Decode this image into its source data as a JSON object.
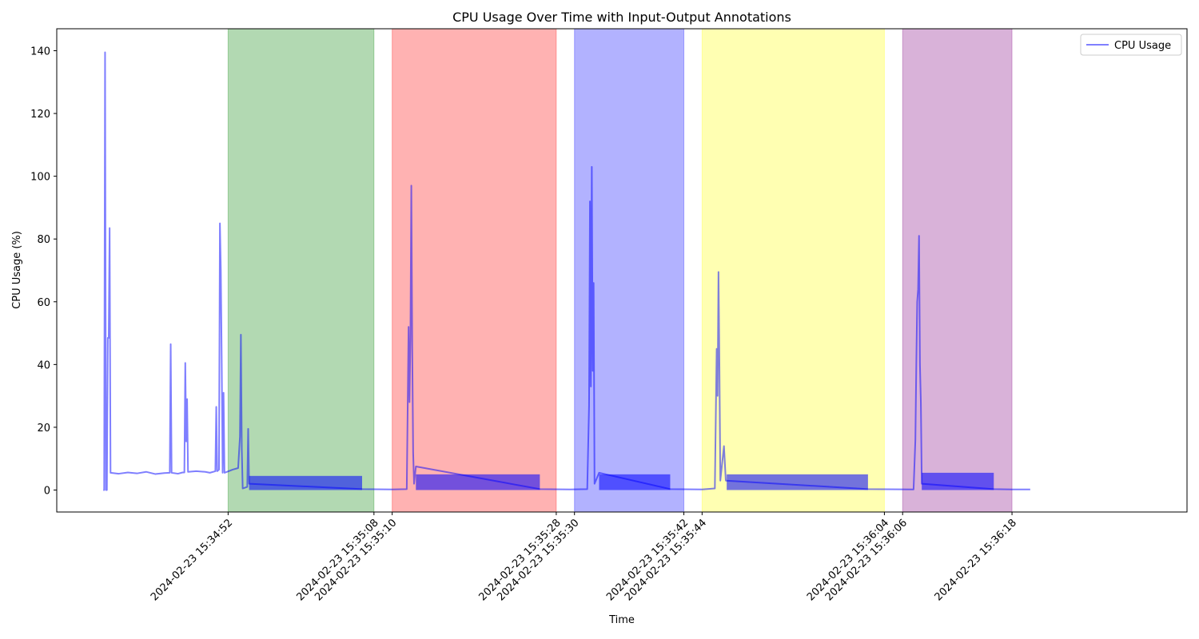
{
  "chart_data": {
    "type": "line",
    "title": "CPU Usage Over Time with Input-Output Annotations",
    "xlabel": "Time",
    "ylabel": "CPU Usage (%)",
    "ylim": [
      -7,
      147
    ],
    "xlim": [
      "2024-02-23 15:34:33.2",
      "2024-02-23 15:36:37.2"
    ],
    "y_ticks": [
      0,
      20,
      40,
      60,
      80,
      100,
      120,
      140
    ],
    "x_ticks": [
      {
        "time": "2024-02-23 15:34:52",
        "label": "2024-02-23 15:34:52"
      },
      {
        "time": "2024-02-23 15:35:08",
        "label": "2024-02-23 15:35:08"
      },
      {
        "time": "2024-02-23 15:35:10",
        "label": "2024-02-23 15:35:10"
      },
      {
        "time": "2024-02-23 15:35:28",
        "label": "2024-02-23 15:35:28"
      },
      {
        "time": "2024-02-23 15:35:30",
        "label": "2024-02-23 15:35:30"
      },
      {
        "time": "2024-02-23 15:35:42",
        "label": "2024-02-23 15:35:42"
      },
      {
        "time": "2024-02-23 15:35:44",
        "label": "2024-02-23 15:35:44"
      },
      {
        "time": "2024-02-23 15:36:04",
        "label": "2024-02-23 15:36:04"
      },
      {
        "time": "2024-02-23 15:36:06",
        "label": "2024-02-23 15:36:06"
      },
      {
        "time": "2024-02-23 15:36:18",
        "label": "2024-02-23 15:36:18"
      }
    ],
    "grid": false,
    "legend": {
      "position": "top-right",
      "entries": [
        "CPU Usage"
      ]
    },
    "annotations": [
      {
        "start": "2024-02-23 15:34:52",
        "end": "2024-02-23 15:35:08",
        "color": "#008000",
        "alpha": 0.3
      },
      {
        "start": "2024-02-23 15:35:10",
        "end": "2024-02-23 15:35:28",
        "color": "#ff0000",
        "alpha": 0.3
      },
      {
        "start": "2024-02-23 15:35:30",
        "end": "2024-02-23 15:35:42",
        "color": "#0000ff",
        "alpha": 0.3
      },
      {
        "start": "2024-02-23 15:35:44",
        "end": "2024-02-23 15:36:04",
        "color": "#ffff00",
        "alpha": 0.3
      },
      {
        "start": "2024-02-23 15:36:06",
        "end": "2024-02-23 15:36:18",
        "color": "#800080",
        "alpha": 0.3
      }
    ],
    "series": [
      {
        "name": "CPU Usage",
        "color": "#0000ff",
        "alpha": 0.5,
        "points": [
          [
            "2024-02-23 15:34:38.3",
            0
          ],
          [
            "2024-02-23 15:34:38.4",
            0
          ],
          [
            "2024-02-23 15:34:38.5",
            139.5
          ],
          [
            "2024-02-23 15:34:38.6",
            0
          ],
          [
            "2024-02-23 15:34:38.7",
            0
          ],
          [
            "2024-02-23 15:34:38.8",
            48.5
          ],
          [
            "2024-02-23 15:34:38.9",
            48.5
          ],
          [
            "2024-02-23 15:34:39.0",
            83.5
          ],
          [
            "2024-02-23 15:34:39.1",
            5.5
          ],
          [
            "2024-02-23 15:34:40.0",
            5.2
          ],
          [
            "2024-02-23 15:34:41.0",
            5.6
          ],
          [
            "2024-02-23 15:34:42.0",
            5.3
          ],
          [
            "2024-02-23 15:34:43.0",
            5.8
          ],
          [
            "2024-02-23 15:34:44.0",
            5.1
          ],
          [
            "2024-02-23 15:34:45.0",
            5.4
          ],
          [
            "2024-02-23 15:34:45.6",
            5.5
          ],
          [
            "2024-02-23 15:34:45.7",
            46.5
          ],
          [
            "2024-02-23 15:34:45.8",
            5.5
          ],
          [
            "2024-02-23 15:34:46.5",
            5.2
          ],
          [
            "2024-02-23 15:34:47.0",
            5.6
          ],
          [
            "2024-02-23 15:34:47.2",
            5.6
          ],
          [
            "2024-02-23 15:34:47.3",
            40.5
          ],
          [
            "2024-02-23 15:34:47.4",
            15.5
          ],
          [
            "2024-02-23 15:34:47.5",
            29.0
          ],
          [
            "2024-02-23 15:34:47.6",
            5.8
          ],
          [
            "2024-02-23 15:34:48.5",
            6.0
          ],
          [
            "2024-02-23 15:34:49.5",
            5.8
          ],
          [
            "2024-02-23 15:34:50.0",
            5.5
          ],
          [
            "2024-02-23 15:34:50.6",
            6.0
          ],
          [
            "2024-02-23 15:34:50.7",
            26.5
          ],
          [
            "2024-02-23 15:34:50.8",
            6.0
          ],
          [
            "2024-02-23 15:34:51.0",
            6.5
          ],
          [
            "2024-02-23 15:34:51.1",
            85.0
          ],
          [
            "2024-02-23 15:34:51.2",
            70.0
          ],
          [
            "2024-02-23 15:34:51.3",
            40.0
          ],
          [
            "2024-02-23 15:34:51.4",
            5.5
          ],
          [
            "2024-02-23 15:34:51.5",
            31.0
          ],
          [
            "2024-02-23 15:34:51.6",
            5.5
          ],
          [
            "2024-02-23 15:34:52.5",
            6.5
          ],
          [
            "2024-02-23 15:34:53.1",
            7.0
          ],
          [
            "2024-02-23 15:34:53.3",
            17.0
          ],
          [
            "2024-02-23 15:34:53.4",
            49.5
          ],
          [
            "2024-02-23 15:34:53.5",
            13.0
          ],
          [
            "2024-02-23 15:34:53.6",
            0.5
          ],
          [
            "2024-02-23 15:34:54.1",
            1.0
          ],
          [
            "2024-02-23 15:34:54.2",
            19.5
          ],
          [
            "2024-02-23 15:34:54.3",
            2.0
          ]
        ],
        "bands": [
          {
            "start": "2024-02-23 15:34:54.3",
            "end": "2024-02-23 15:35:06.7",
            "low": 0,
            "high": 4.5
          },
          {
            "start": "2024-02-23 15:35:12.6",
            "end": "2024-02-23 15:35:26.2",
            "low": 0,
            "high": 5.0
          },
          {
            "start": "2024-02-23 15:35:32.7",
            "end": "2024-02-23 15:35:40.5",
            "low": 0,
            "high": 5.0
          },
          {
            "start": "2024-02-23 15:35:46.7",
            "end": "2024-02-23 15:36:02.2",
            "low": 0,
            "high": 5.0
          },
          {
            "start": "2024-02-23 15:36:08.1",
            "end": "2024-02-23 15:36:16.0",
            "low": 0,
            "high": 5.5
          }
        ],
        "points_2": [
          [
            "2024-02-23 15:35:06.7",
            0.3
          ],
          [
            "2024-02-23 15:35:10.0",
            0.2
          ],
          [
            "2024-02-23 15:35:11.6",
            0.3
          ],
          [
            "2024-02-23 15:35:11.8",
            52.0
          ],
          [
            "2024-02-23 15:35:11.9",
            28.0
          ],
          [
            "2024-02-23 15:35:12.0",
            48.0
          ],
          [
            "2024-02-23 15:35:12.1",
            97.0
          ],
          [
            "2024-02-23 15:35:12.2",
            45.0
          ],
          [
            "2024-02-23 15:35:12.3",
            12.0
          ],
          [
            "2024-02-23 15:35:12.4",
            2.0
          ],
          [
            "2024-02-23 15:35:12.6",
            7.5
          ],
          [
            "2024-02-23 15:35:26.2",
            0.3
          ],
          [
            "2024-02-23 15:35:29.5",
            0.2
          ],
          [
            "2024-02-23 15:35:31.4",
            0.3
          ],
          [
            "2024-02-23 15:35:31.6",
            27.0
          ],
          [
            "2024-02-23 15:35:31.7",
            92.0
          ],
          [
            "2024-02-23 15:35:31.8",
            33.0
          ],
          [
            "2024-02-23 15:35:31.9",
            103.0
          ],
          [
            "2024-02-23 15:35:32.0",
            38.0
          ],
          [
            "2024-02-23 15:35:32.1",
            66.0
          ],
          [
            "2024-02-23 15:35:32.2",
            2.0
          ],
          [
            "2024-02-23 15:35:32.7",
            5.5
          ],
          [
            "2024-02-23 15:35:40.5",
            0.3
          ],
          [
            "2024-02-23 15:35:44.0",
            0.2
          ],
          [
            "2024-02-23 15:35:45.4",
            0.5
          ],
          [
            "2024-02-23 15:35:45.6",
            45.0
          ],
          [
            "2024-02-23 15:35:45.7",
            30.0
          ],
          [
            "2024-02-23 15:35:45.8",
            69.5
          ],
          [
            "2024-02-23 15:35:45.9",
            40.0
          ],
          [
            "2024-02-23 15:35:46.0",
            3.0
          ],
          [
            "2024-02-23 15:35:46.4",
            14.0
          ],
          [
            "2024-02-23 15:35:46.6",
            3.0
          ],
          [
            "2024-02-23 15:36:02.2",
            0.3
          ],
          [
            "2024-02-23 15:36:07.2",
            0.2
          ],
          [
            "2024-02-23 15:36:07.4",
            16.0
          ],
          [
            "2024-02-23 15:36:07.5",
            39.5
          ],
          [
            "2024-02-23 15:36:07.6",
            60.0
          ],
          [
            "2024-02-23 15:36:07.7",
            64.0
          ],
          [
            "2024-02-23 15:36:07.8",
            81.0
          ],
          [
            "2024-02-23 15:36:07.9",
            40.0
          ],
          [
            "2024-02-23 15:36:08.0",
            28.0
          ],
          [
            "2024-02-23 15:36:08.1",
            2.0
          ],
          [
            "2024-02-23 15:36:16.0",
            0.3
          ],
          [
            "2024-02-23 15:36:18.0",
            0.2
          ],
          [
            "2024-02-23 15:36:20.0",
            0.2
          ]
        ]
      }
    ]
  }
}
